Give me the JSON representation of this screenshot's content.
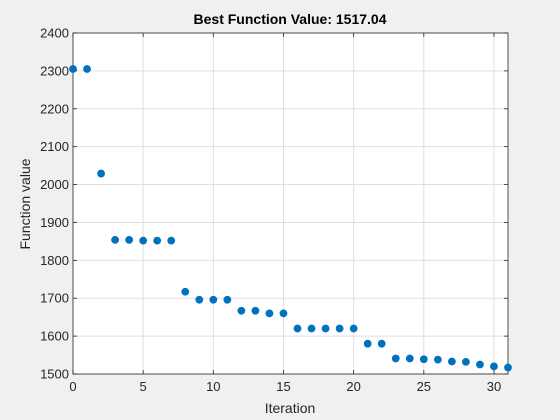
{
  "chart_data": {
    "type": "scatter",
    "title": "Best Function Value: 1517.04",
    "xlabel": "Iteration",
    "ylabel": "Function value",
    "xlim": [
      0,
      31
    ],
    "ylim": [
      1500,
      2400
    ],
    "xticks": [
      0,
      5,
      10,
      15,
      20,
      25,
      30
    ],
    "yticks": [
      1500,
      1600,
      1700,
      1800,
      1900,
      2000,
      2100,
      2200,
      2300,
      2400
    ],
    "grid": true,
    "legend": "none",
    "marker_color": "#0072bd",
    "background_color": "#f0f0f0",
    "axes_color": "#ffffff",
    "grid_color": "#dfdfdf",
    "points": [
      {
        "x": 0,
        "y": 2305
      },
      {
        "x": 1,
        "y": 2305
      },
      {
        "x": 2,
        "y": 2029
      },
      {
        "x": 3,
        "y": 1854
      },
      {
        "x": 4,
        "y": 1854
      },
      {
        "x": 5,
        "y": 1852
      },
      {
        "x": 6,
        "y": 1852
      },
      {
        "x": 7,
        "y": 1852
      },
      {
        "x": 8,
        "y": 1717
      },
      {
        "x": 9,
        "y": 1696
      },
      {
        "x": 10,
        "y": 1696
      },
      {
        "x": 11,
        "y": 1696
      },
      {
        "x": 12,
        "y": 1667
      },
      {
        "x": 13,
        "y": 1667
      },
      {
        "x": 14,
        "y": 1660
      },
      {
        "x": 15,
        "y": 1660
      },
      {
        "x": 16,
        "y": 1620
      },
      {
        "x": 17,
        "y": 1620
      },
      {
        "x": 18,
        "y": 1620
      },
      {
        "x": 19,
        "y": 1620
      },
      {
        "x": 20,
        "y": 1620
      },
      {
        "x": 21,
        "y": 1580
      },
      {
        "x": 22,
        "y": 1580
      },
      {
        "x": 23,
        "y": 1541
      },
      {
        "x": 24,
        "y": 1541
      },
      {
        "x": 25,
        "y": 1539
      },
      {
        "x": 26,
        "y": 1538
      },
      {
        "x": 27,
        "y": 1533
      },
      {
        "x": 28,
        "y": 1532
      },
      {
        "x": 29,
        "y": 1525
      },
      {
        "x": 30,
        "y": 1520
      },
      {
        "x": 31,
        "y": 1517
      }
    ]
  }
}
